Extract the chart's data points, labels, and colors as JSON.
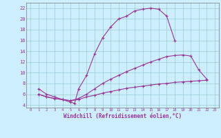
{
  "xlabel": "Windchill (Refroidissement éolien,°C)",
  "background_color": "#cceeff",
  "grid_color": "#99cccc",
  "line_color": "#993399",
  "xlim": [
    -0.5,
    23.5
  ],
  "ylim": [
    3.5,
    23
  ],
  "xticks": [
    0,
    1,
    2,
    3,
    4,
    5,
    6,
    7,
    8,
    9,
    10,
    11,
    12,
    13,
    14,
    15,
    16,
    17,
    18,
    19,
    20,
    21,
    22,
    23
  ],
  "yticks": [
    4,
    6,
    8,
    10,
    12,
    14,
    16,
    18,
    20,
    22
  ],
  "curve1_x": [
    1,
    2,
    3,
    4,
    5,
    5.5,
    6,
    7,
    8,
    9,
    10,
    11,
    12,
    13,
    14,
    15,
    16,
    17,
    18
  ],
  "curve1_y": [
    7,
    6,
    5.5,
    5,
    4.5,
    4.3,
    7.0,
    9.5,
    13.5,
    16.5,
    18.5,
    20,
    20.5,
    21.5,
    21.8,
    22.0,
    21.8,
    20.5,
    16
  ],
  "curve2_x": [
    1,
    2,
    3,
    4,
    5,
    6,
    7,
    8,
    9,
    10,
    11,
    12,
    13,
    14,
    15,
    16,
    17,
    18,
    19,
    20,
    21,
    22
  ],
  "curve2_y": [
    6.0,
    5.5,
    5.2,
    5.0,
    4.8,
    5.2,
    6.0,
    7.0,
    8.0,
    8.8,
    9.5,
    10.2,
    10.8,
    11.4,
    12.0,
    12.5,
    13.0,
    13.2,
    13.3,
    13.1,
    10.5,
    8.8
  ],
  "curve3_x": [
    1,
    2,
    3,
    4,
    5,
    6,
    7,
    8,
    9,
    10,
    11,
    12,
    13,
    14,
    15,
    16,
    17,
    18,
    19,
    20,
    21,
    22
  ],
  "curve3_y": [
    6.0,
    5.5,
    5.2,
    5.0,
    4.8,
    5.0,
    5.5,
    5.8,
    6.2,
    6.5,
    6.8,
    7.1,
    7.3,
    7.5,
    7.7,
    7.9,
    8.0,
    8.2,
    8.3,
    8.4,
    8.5,
    8.6
  ]
}
